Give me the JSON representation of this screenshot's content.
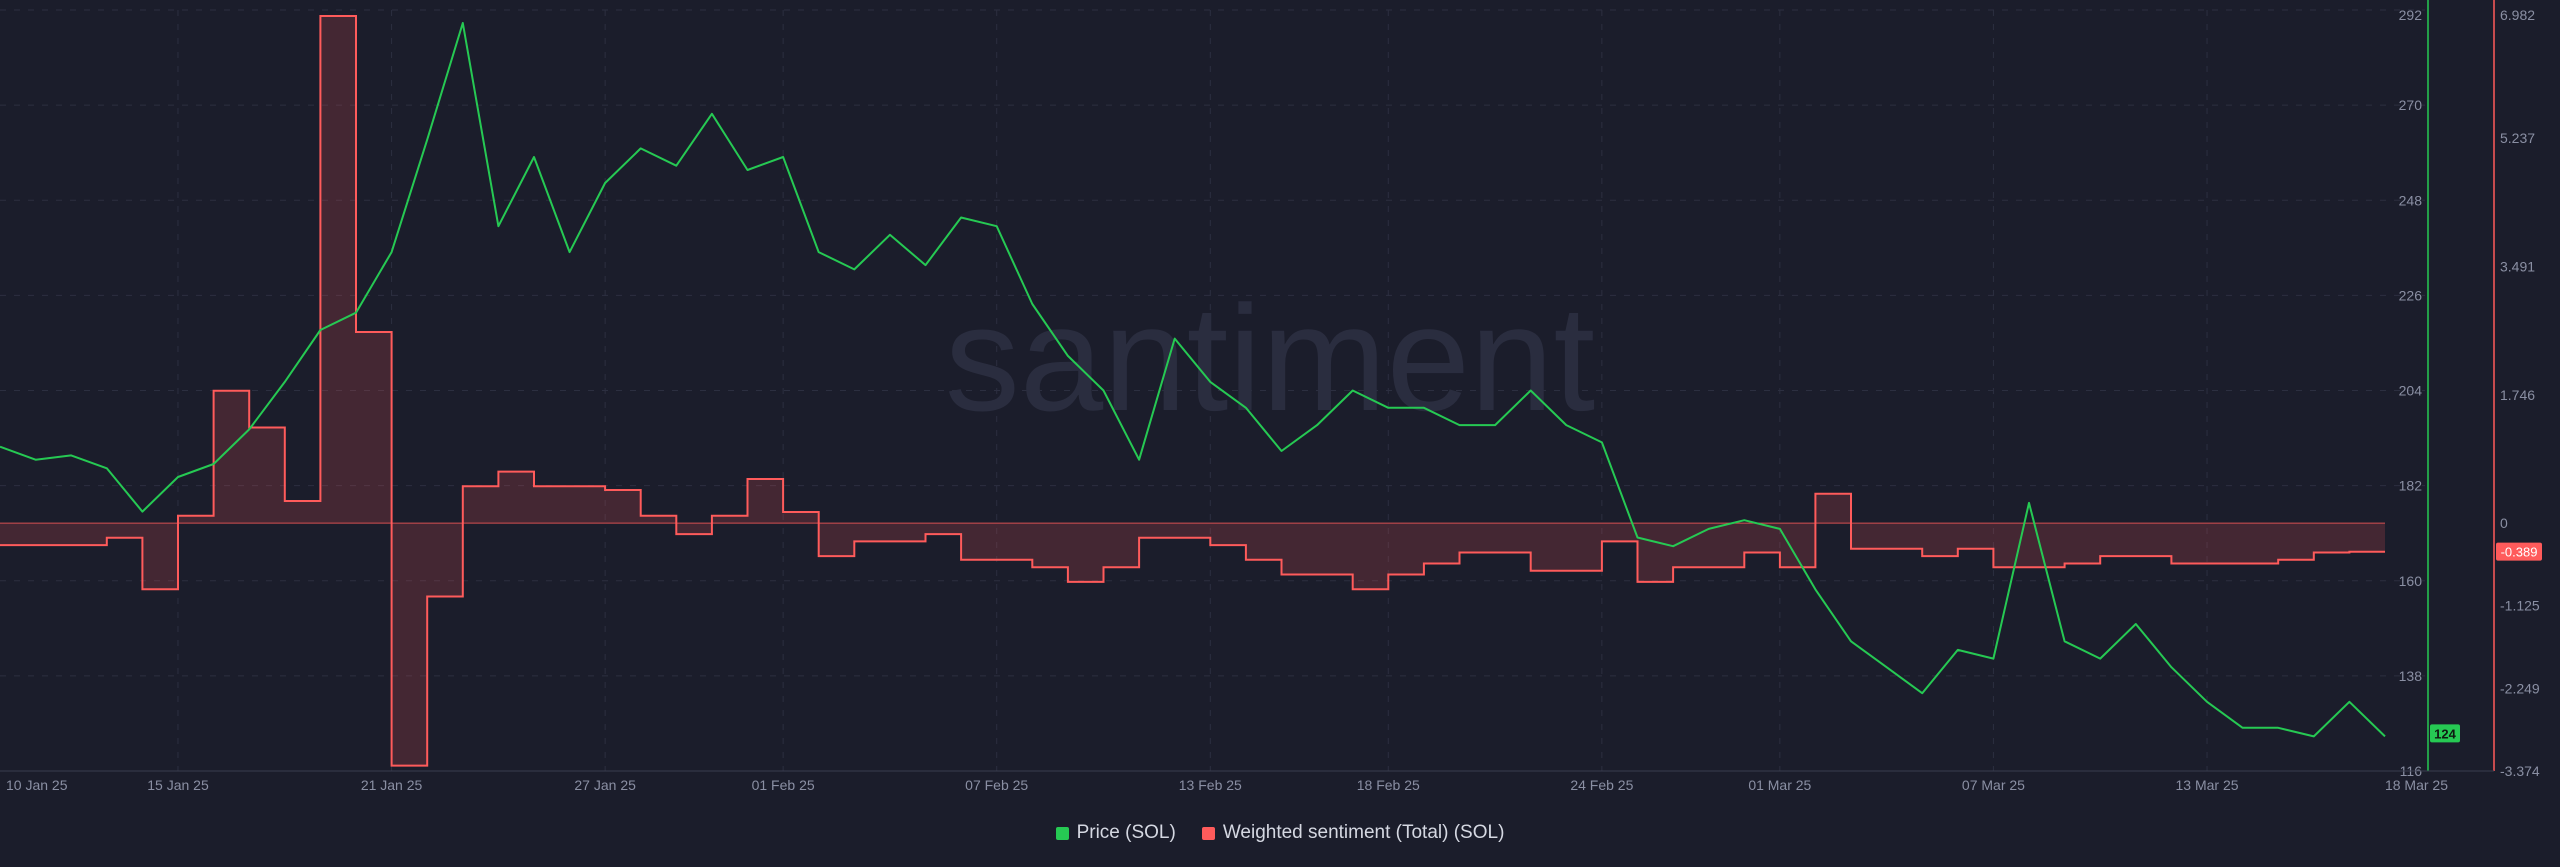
{
  "watermark": "santiment",
  "legend": {
    "price_label": "Price (SOL)",
    "sentiment_label": "Weighted sentiment (Total) (SOL)"
  },
  "colors": {
    "background": "#1b1d2b",
    "price": "#26c953",
    "sentiment": "#ff5b5b",
    "grid": "#2c2f40",
    "axis_text": "#8a8fa3"
  },
  "chart_data": {
    "type": "line",
    "x_tick_labels": [
      "10 Jan 25",
      "15 Jan 25",
      "21 Jan 25",
      "27 Jan 25",
      "01 Feb 25",
      "07 Feb 25",
      "13 Feb 25",
      "18 Feb 25",
      "24 Feb 25",
      "01 Mar 25",
      "07 Mar 25",
      "13 Mar 25",
      "18 Mar 25"
    ],
    "x_range": [
      "2025-01-10",
      "2025-03-18"
    ],
    "price_axis": {
      "ylim": [
        116,
        292
      ],
      "tick_labels": [
        "292",
        "270",
        "248",
        "226",
        "204",
        "182",
        "160",
        "138",
        "116"
      ],
      "last_value_label": "124"
    },
    "sentiment_axis": {
      "ylim": [
        -3.374,
        6.982
      ],
      "tick_labels": [
        "6.982",
        "5.237",
        "3.491",
        "1.746",
        "0",
        "-1.125",
        "-2.249",
        "-3.374"
      ],
      "last_value_label": "-0.389"
    },
    "grid": true,
    "legend_position": "bottom-center",
    "series": [
      {
        "name": "Price (SOL)",
        "axis": "left",
        "points": [
          [
            "2025-01-10",
            191
          ],
          [
            "2025-01-11",
            188
          ],
          [
            "2025-01-12",
            189
          ],
          [
            "2025-01-13",
            186
          ],
          [
            "2025-01-14",
            176
          ],
          [
            "2025-01-15",
            184
          ],
          [
            "2025-01-16",
            187
          ],
          [
            "2025-01-17",
            195
          ],
          [
            "2025-01-18",
            206
          ],
          [
            "2025-01-19",
            218
          ],
          [
            "2025-01-20",
            222
          ],
          [
            "2025-01-21",
            236
          ],
          [
            "2025-01-22",
            262
          ],
          [
            "2025-01-23",
            289
          ],
          [
            "2025-01-24",
            242
          ],
          [
            "2025-01-25",
            258
          ],
          [
            "2025-01-26",
            236
          ],
          [
            "2025-01-27",
            252
          ],
          [
            "2025-01-28",
            260
          ],
          [
            "2025-01-29",
            256
          ],
          [
            "2025-01-30",
            268
          ],
          [
            "2025-01-31",
            255
          ],
          [
            "2025-02-01",
            258
          ],
          [
            "2025-02-02",
            236
          ],
          [
            "2025-02-03",
            232
          ],
          [
            "2025-02-04",
            240
          ],
          [
            "2025-02-05",
            233
          ],
          [
            "2025-02-06",
            244
          ],
          [
            "2025-02-07",
            242
          ],
          [
            "2025-02-08",
            224
          ],
          [
            "2025-02-09",
            212
          ],
          [
            "2025-02-10",
            204
          ],
          [
            "2025-02-11",
            188
          ],
          [
            "2025-02-12",
            216
          ],
          [
            "2025-02-13",
            206
          ],
          [
            "2025-02-14",
            200
          ],
          [
            "2025-02-15",
            190
          ],
          [
            "2025-02-16",
            196
          ],
          [
            "2025-02-17",
            204
          ],
          [
            "2025-02-18",
            200
          ],
          [
            "2025-02-19",
            200
          ],
          [
            "2025-02-20",
            196
          ],
          [
            "2025-02-21",
            196
          ],
          [
            "2025-02-22",
            204
          ],
          [
            "2025-02-23",
            196
          ],
          [
            "2025-02-24",
            192
          ],
          [
            "2025-02-25",
            170
          ],
          [
            "2025-02-26",
            168
          ],
          [
            "2025-02-27",
            172
          ],
          [
            "2025-02-28",
            174
          ],
          [
            "2025-03-01",
            172
          ],
          [
            "2025-03-02",
            158
          ],
          [
            "2025-03-03",
            146
          ],
          [
            "2025-03-04",
            140
          ],
          [
            "2025-03-05",
            134
          ],
          [
            "2025-03-06",
            144
          ],
          [
            "2025-03-07",
            142
          ],
          [
            "2025-03-08",
            178
          ],
          [
            "2025-03-09",
            146
          ],
          [
            "2025-03-10",
            142
          ],
          [
            "2025-03-11",
            150
          ],
          [
            "2025-03-12",
            140
          ],
          [
            "2025-03-13",
            132
          ],
          [
            "2025-03-14",
            126
          ],
          [
            "2025-03-15",
            126
          ],
          [
            "2025-03-16",
            124
          ],
          [
            "2025-03-17",
            132
          ],
          [
            "2025-03-18",
            124
          ]
        ]
      },
      {
        "name": "Weighted sentiment (Total) (SOL)",
        "axis": "right",
        "steps": [
          [
            "2025-01-10",
            -0.3
          ],
          [
            "2025-01-13",
            -0.2
          ],
          [
            "2025-01-14",
            -0.9
          ],
          [
            "2025-01-15",
            0.1
          ],
          [
            "2025-01-16",
            1.8
          ],
          [
            "2025-01-17",
            1.3
          ],
          [
            "2025-01-18",
            0.3
          ],
          [
            "2025-01-19",
            6.9
          ],
          [
            "2025-01-20",
            2.6
          ],
          [
            "2025-01-21",
            -3.3
          ],
          [
            "2025-01-22",
            -1.0
          ],
          [
            "2025-01-23",
            0.5
          ],
          [
            "2025-01-24",
            0.7
          ],
          [
            "2025-01-25",
            0.5
          ],
          [
            "2025-01-27",
            0.45
          ],
          [
            "2025-01-28",
            0.1
          ],
          [
            "2025-01-29",
            -0.15
          ],
          [
            "2025-01-30",
            0.1
          ],
          [
            "2025-01-31",
            0.6
          ],
          [
            "2025-02-01",
            0.15
          ],
          [
            "2025-02-02",
            -0.45
          ],
          [
            "2025-02-03",
            -0.25
          ],
          [
            "2025-02-05",
            -0.15
          ],
          [
            "2025-02-06",
            -0.5
          ],
          [
            "2025-02-08",
            -0.6
          ],
          [
            "2025-02-09",
            -0.8
          ],
          [
            "2025-02-10",
            -0.6
          ],
          [
            "2025-02-11",
            -0.2
          ],
          [
            "2025-02-13",
            -0.3
          ],
          [
            "2025-02-14",
            -0.5
          ],
          [
            "2025-02-15",
            -0.7
          ],
          [
            "2025-02-17",
            -0.9
          ],
          [
            "2025-02-18",
            -0.7
          ],
          [
            "2025-02-19",
            -0.55
          ],
          [
            "2025-02-20",
            -0.4
          ],
          [
            "2025-02-22",
            -0.65
          ],
          [
            "2025-02-24",
            -0.25
          ],
          [
            "2025-02-25",
            -0.8
          ],
          [
            "2025-02-26",
            -0.6
          ],
          [
            "2025-02-28",
            -0.4
          ],
          [
            "2025-03-01",
            -0.6
          ],
          [
            "2025-03-02",
            0.4
          ],
          [
            "2025-03-03",
            -0.35
          ],
          [
            "2025-03-05",
            -0.45
          ],
          [
            "2025-03-06",
            -0.35
          ],
          [
            "2025-03-07",
            -0.6
          ],
          [
            "2025-03-09",
            -0.55
          ],
          [
            "2025-03-10",
            -0.45
          ],
          [
            "2025-03-12",
            -0.55
          ],
          [
            "2025-03-15",
            -0.5
          ],
          [
            "2025-03-16",
            -0.4
          ],
          [
            "2025-03-17",
            -0.389
          ],
          [
            "2025-03-18",
            -0.389
          ]
        ]
      }
    ]
  }
}
